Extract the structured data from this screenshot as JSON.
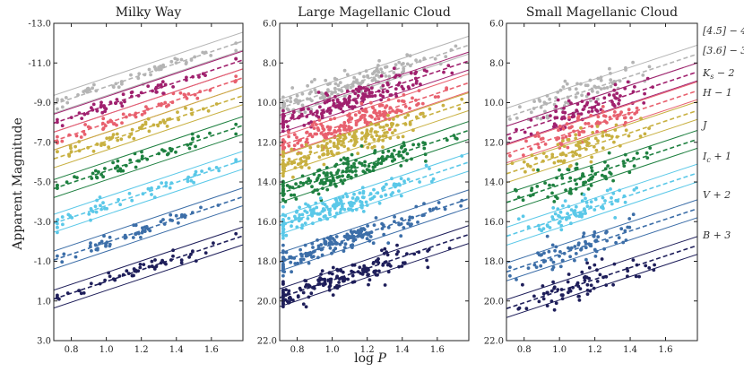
{
  "chart_data": {
    "type": "scatter",
    "xlabel": "log P",
    "ylabel": "Apparent Magnitude",
    "xlim": [
      0.7,
      1.78
    ],
    "xticks": [
      0.8,
      1.0,
      1.2,
      1.4,
      1.6
    ],
    "xtick_labels": [
      "0.8",
      "1.0",
      "1.2",
      "1.4",
      "1.6"
    ],
    "bands": [
      {
        "name": "[4.5] - 4",
        "label": "[4.5] − 4",
        "color": "#b4b4b4"
      },
      {
        "name": "[3.6] - 3",
        "label": "[3.6] − 3",
        "color": "#a0206e"
      },
      {
        "name": "Ks - 2",
        "label": "K_s − 2",
        "color": "#e8606e"
      },
      {
        "name": "H - 1",
        "label": "H − 1",
        "color": "#c8b040"
      },
      {
        "name": "J",
        "label": "J",
        "color": "#1e8040"
      },
      {
        "name": "Ic + 1",
        "label": "I_c + 1",
        "color": "#5ac8e8"
      },
      {
        "name": "V + 2",
        "label": "V + 2",
        "color": "#3c6ea8"
      },
      {
        "name": "B + 3",
        "label": "B + 3",
        "color": "#1e1e5a"
      }
    ],
    "panels": [
      {
        "title": "Milky Way",
        "ylim": [
          -13.0,
          3.0
        ],
        "yticks": [
          -13,
          -11,
          -9,
          -7,
          -5,
          -3,
          -1,
          1,
          3
        ],
        "ytick_labels": [
          "-13.0",
          "-11.0",
          "-9.0",
          "-7.0",
          "-5.0",
          "-3.0",
          "-1.0",
          "1.0",
          "3.0"
        ],
        "slope": -2.95,
        "intercepts_at_logP_1": [
          -9.8,
          -8.85,
          -7.95,
          -7.05,
          -5.55,
          -3.8,
          -1.95,
          0.02
        ],
        "width": 0.45,
        "stars_per_band": 55,
        "scatter": 0.18,
        "logP_center": 1.15,
        "logP_spread": 0.28,
        "seed": 11
      },
      {
        "title": "Large Magellanic Cloud",
        "ylim": [
          6.0,
          22.0
        ],
        "yticks": [
          6,
          8,
          10,
          12,
          14,
          16,
          18,
          20,
          22
        ],
        "ytick_labels": [
          "6.0",
          "8.0",
          "10.0",
          "12.0",
          "14.0",
          "16.0",
          "18.0",
          "20.0",
          "22.0"
        ],
        "slope": -2.95,
        "intercepts_at_logP_1": [
          9.4,
          10.2,
          11.3,
          12.25,
          13.7,
          15.3,
          17.15,
          18.95
        ],
        "width": 0.45,
        "stars_per_band": 170,
        "scatter": 0.32,
        "logP_center": 1.05,
        "logP_spread": 0.26,
        "seed": 23
      },
      {
        "title": "Small Magellanic Cloud",
        "ylim": [
          6.0,
          22.0
        ],
        "yticks": [
          6,
          8,
          10,
          12,
          14,
          16,
          18,
          20,
          22
        ],
        "ytick_labels": [
          "6.0",
          "8.0",
          "10.0",
          "12.0",
          "14.0",
          "16.0",
          "18.0",
          "20.0",
          "22.0"
        ],
        "slope": -2.95,
        "intercepts_at_logP_1": [
          9.85,
          10.75,
          11.7,
          12.7,
          14.15,
          15.85,
          17.65,
          19.5
        ],
        "width": 0.45,
        "stars_per_band": 75,
        "scatter": 0.38,
        "logP_center": 1.12,
        "logP_spread": 0.17,
        "seed": 37
      }
    ]
  }
}
